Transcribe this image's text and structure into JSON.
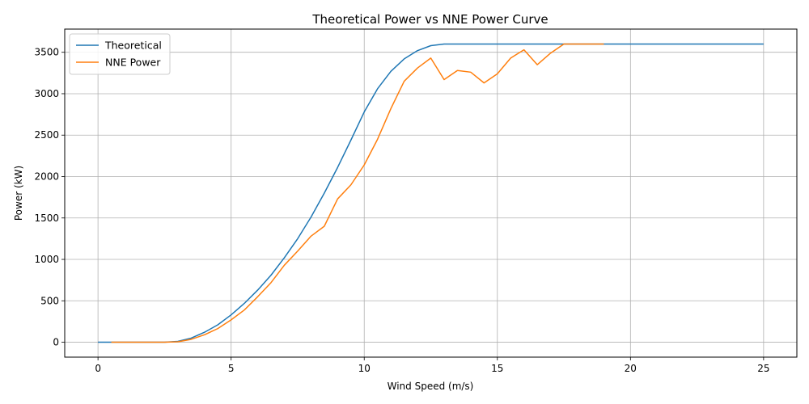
{
  "chart_data": {
    "type": "line",
    "title": "Theoretical Power vs NNE Power Curve",
    "xlabel": "Wind Speed (m/s)",
    "ylabel": "Power (kW)",
    "xlim": [
      -1.25,
      26.25
    ],
    "ylim": [
      -180,
      3780
    ],
    "xticks": [
      0,
      5,
      10,
      15,
      20,
      25
    ],
    "yticks": [
      0,
      500,
      1000,
      1500,
      2000,
      2500,
      3000,
      3500
    ],
    "grid": true,
    "legend_position": "top-left",
    "series": [
      {
        "name": "Theoretical",
        "color": "#1f77b4",
        "x": [
          0,
          0.5,
          1,
          1.5,
          2,
          2.5,
          3,
          3.5,
          4,
          4.5,
          5,
          5.5,
          6,
          6.5,
          7,
          7.5,
          8,
          8.5,
          9,
          9.5,
          10,
          10.5,
          11,
          11.5,
          12,
          12.5,
          13,
          13.5,
          14,
          14.5,
          15,
          15.5,
          16,
          16.5,
          17,
          17.5,
          18,
          18.5,
          19,
          19.5,
          20,
          20.5,
          21,
          21.5,
          22,
          22.5,
          23,
          23.5,
          24,
          24.5,
          25
        ],
        "y": [
          0,
          0,
          0,
          0,
          0,
          0,
          10,
          50,
          120,
          210,
          330,
          470,
          630,
          810,
          1020,
          1250,
          1510,
          1800,
          2110,
          2440,
          2780,
          3060,
          3270,
          3420,
          3520,
          3580,
          3600,
          3600,
          3600,
          3600,
          3600,
          3600,
          3600,
          3600,
          3600,
          3600,
          3600,
          3600,
          3600,
          3600,
          3600,
          3600,
          3600,
          3600,
          3600,
          3600,
          3600,
          3600,
          3600,
          3600,
          3600
        ]
      },
      {
        "name": "NNE Power",
        "color": "#ff7f0e",
        "x": [
          0.5,
          1,
          1.5,
          2,
          2.5,
          3,
          3.5,
          4,
          4.5,
          5,
          5.5,
          6,
          6.5,
          7,
          7.5,
          8,
          8.5,
          9,
          9.5,
          10,
          10.5,
          11,
          11.5,
          12,
          12.5,
          13,
          13.5,
          14,
          14.5,
          15,
          15.5,
          16,
          16.5,
          17,
          17.5,
          18,
          18.5,
          19
        ],
        "y": [
          0,
          0,
          0,
          0,
          0,
          5,
          35,
          90,
          165,
          270,
          390,
          550,
          720,
          930,
          1100,
          1280,
          1400,
          1730,
          1900,
          2140,
          2450,
          2820,
          3150,
          3310,
          3430,
          3170,
          3280,
          3260,
          3130,
          3240,
          3430,
          3530,
          3350,
          3490,
          3600,
          3600,
          3600,
          3600
        ]
      }
    ]
  }
}
